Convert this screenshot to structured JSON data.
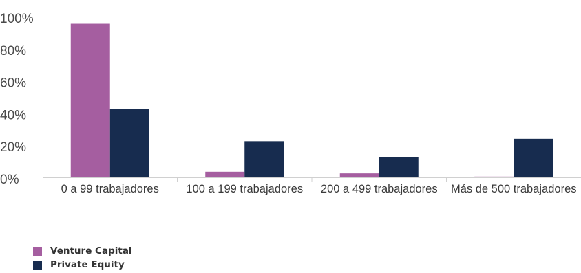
{
  "chart_data": {
    "type": "bar",
    "categories": [
      "0 a 99 trabajadores",
      "100 a 199 trabajadores",
      "200 a 499 trabajadores",
      "Más de 500 trabajadores"
    ],
    "series": [
      {
        "name": "Venture Capital",
        "color": "#a55ea0",
        "values": [
          95.5,
          3.5,
          2.5,
          0.5
        ]
      },
      {
        "name": "Private Equity",
        "color": "#172c4f",
        "values": [
          42.5,
          22.5,
          12.5,
          24
        ]
      }
    ],
    "ylim": [
      0,
      100
    ],
    "yticks": [
      "0%",
      "20%",
      "40%",
      "60%",
      "80%",
      "100%"
    ],
    "ytick_values": [
      0,
      20,
      40,
      60,
      80,
      100
    ],
    "grid": false,
    "legend_position": "bottom-left"
  }
}
